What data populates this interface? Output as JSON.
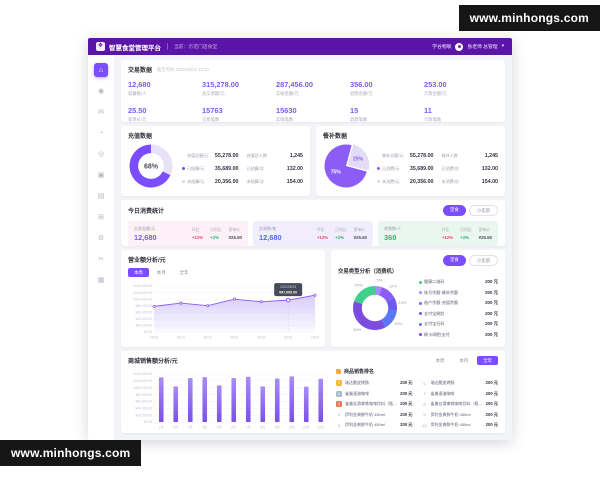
{
  "watermark": {
    "text": "www.minhongs.com"
  },
  "colors": {
    "primary": "#7c4dff",
    "header_bg": "#5a14a6",
    "red": "#ef4b6e",
    "green": "#2fb371",
    "blue": "#4f6bf5"
  },
  "header": {
    "app_title": "智慧食堂管理平台",
    "breadcrumb": "当前：示范门店食堂",
    "org_link": "学谷物联",
    "user_name": "张老师 总管理",
    "caret": "▾"
  },
  "sidebar": {
    "items": [
      {
        "name": "home",
        "glyph": "⌂"
      },
      {
        "name": "user",
        "glyph": "◉"
      },
      {
        "name": "message",
        "glyph": "✉"
      },
      {
        "name": "clock",
        "glyph": "◔"
      },
      {
        "name": "check",
        "glyph": "◎"
      },
      {
        "name": "image",
        "glyph": "▣"
      },
      {
        "name": "calendar",
        "glyph": "▤"
      },
      {
        "name": "device",
        "glyph": "⊞"
      },
      {
        "name": "settings",
        "glyph": "⚙"
      },
      {
        "name": "tools",
        "glyph": "✂"
      },
      {
        "name": "storage",
        "glyph": "▦"
      }
    ]
  },
  "transaction": {
    "title": "交易数据",
    "subtitle": "截至时间 2021/06/20 13:10",
    "stats": [
      {
        "value": "12,680",
        "label": "就餐数/人"
      },
      {
        "value": "315,278.00",
        "label": "总交易额/元"
      },
      {
        "value": "287,456.00",
        "label": "实收金额/元"
      },
      {
        "value": "356.00",
        "label": "退款金额/元"
      },
      {
        "value": "253.00",
        "label": "欠款金额/元"
      },
      {
        "value": "25.50",
        "label": "客单价/元"
      },
      {
        "value": "15763",
        "label": "交易笔数"
      },
      {
        "value": "15630",
        "label": "实收笔数"
      },
      {
        "value": "15",
        "label": "退款笔数"
      },
      {
        "value": "11",
        "label": "欠款笔数"
      }
    ]
  },
  "recharge": {
    "title": "充值数据",
    "rows": [
      {
        "dot": "",
        "label": "充值总额/元",
        "value": "55,278.00",
        "label2": "充值总人数",
        "value2": "1,245"
      },
      {
        "dot": "#7c4dff",
        "label": "已结算/元",
        "value": "35,689.00",
        "label2": "已结算/次",
        "value2": "132.00"
      },
      {
        "dot": "#ddd5f2",
        "label": "未结算/元",
        "value": "20,356.00",
        "label2": "未结算/次",
        "value2": "154.00"
      }
    ]
  },
  "subsidy": {
    "title": "餐补数据",
    "rows": [
      {
        "dot": "",
        "label": "餐补总额/元",
        "value": "55,278.00",
        "label2": "餐补人数",
        "value2": "1,245"
      },
      {
        "dot": "#8b5cf6",
        "label": "已消费/元",
        "value": "35,689.00",
        "label2": "已消费/次",
        "value2": "132.00"
      },
      {
        "dot": "#ddd5f2",
        "label": "未消费/元",
        "value": "20,356.00",
        "label2": "未消费/次",
        "value2": "154.00"
      }
    ]
  },
  "today": {
    "title": "今日消费统计",
    "btn_dine": "堂食",
    "btn_shop": "小卖部",
    "cards": [
      {
        "label": "交易金额/元",
        "value": "12,680",
        "bg": "#fdf0f6",
        "value_color": "#7b5cf0",
        "m1_label": "环比",
        "m1": "+12%",
        "m2_label": "日同比",
        "m2": "+2%",
        "m3_label": "客单价",
        "m3": "¥25.50"
      },
      {
        "label": "交易数/笔",
        "value": "12,680",
        "bg": "#f1edfd",
        "value_color": "#4f6bf5",
        "m1_label": "环比",
        "m1": "+12%",
        "m2_label": "日同比",
        "m2": "+2%",
        "m3_label": "客单价",
        "m3": "¥25.50"
      },
      {
        "label": "就餐数/人",
        "value": "360",
        "bg": "#eaf7f0",
        "value_color": "#2fb371",
        "m1_label": "环比",
        "m1": "+12%",
        "m2_label": "日同比",
        "m2": "+2%",
        "m3_label": "客单价",
        "m3": "¥25.50"
      }
    ]
  },
  "revenue": {
    "title": "营业额分析/元",
    "tabs": [
      "本周",
      "本月",
      "全年"
    ]
  },
  "type_analysis": {
    "title": "交易类型分析（消费机）",
    "btn_dine": "堂食",
    "btn_shop": "小卖部",
    "legend": [
      {
        "color": "#3fd08d",
        "name": "健康二维码",
        "value": "200 元"
      },
      {
        "color": "#a78bfa",
        "name": "账号余额-餐补余额",
        "value": "200 元"
      },
      {
        "color": "#8b5cf6",
        "name": "账户余额-充值余额",
        "value": "200 元"
      },
      {
        "color": "#6e5bf0",
        "name": "支付宝刷脸",
        "value": "200 元"
      },
      {
        "color": "#5a77f5",
        "name": "支付宝扫码",
        "value": "200 元"
      },
      {
        "color": "#7c4be0",
        "name": "刷卡/刷脸支付",
        "value": "200 元"
      }
    ]
  },
  "mall": {
    "title": "商城销售额分析/元",
    "tabs": [
      "本周",
      "本月",
      "全年"
    ]
  },
  "ranking": {
    "title": "商品销售排名",
    "rows_left": [
      {
        "rank": "1",
        "badge": "#f6b73c",
        "name": "瑞达脆皮烤肠",
        "value": "200 元"
      },
      {
        "rank": "2",
        "badge": "#a8bccb",
        "name": "雀巢速溶咖啡",
        "value": "200 元"
      },
      {
        "rank": "3",
        "badge": "#e8795a",
        "name": "雀巢丝滑拿铁咖啡饮料（瓶装）",
        "value": "200 元"
      },
      {
        "rank": "4",
        "badge": "",
        "name": "伊利金典鲜牛奶 450ml",
        "value": "200 元"
      },
      {
        "rank": "5",
        "badge": "",
        "name": "伊利金典鲜牛奶 450ml",
        "value": "200 元"
      }
    ],
    "rows_right": [
      {
        "rank": "6",
        "name": "瑞达脆皮烤肠",
        "value": "200 元"
      },
      {
        "rank": "7",
        "name": "雀巢速溶咖啡",
        "value": "200 元"
      },
      {
        "rank": "8",
        "name": "雀巢丝滑拿铁咖啡饮料（瓶装）",
        "value": "200 元"
      },
      {
        "rank": "9",
        "name": "伊利金典鲜牛奶 450ml",
        "value": "200 元"
      },
      {
        "rank": "10",
        "name": "伊利金典鲜牛奶 450ml",
        "value": "200 元"
      }
    ]
  },
  "chart_data": [
    {
      "id": "recharge-donut",
      "type": "pie",
      "donut": true,
      "start": -90,
      "labels": [
        "未结算",
        "已结算"
      ],
      "values": [
        32,
        68
      ],
      "colors": [
        "#e7e2f7",
        "#7c4dff"
      ],
      "center_label": "68%"
    },
    {
      "id": "subsidy-pie",
      "type": "pie",
      "start": -75,
      "explode": 0,
      "labels": [
        "未消费",
        "已消费"
      ],
      "values": [
        25,
        75
      ],
      "colors": [
        "#e3dcf5",
        "#8b5cf6"
      ],
      "inner_labels": true,
      "inner_label_colors": [
        "#8b5cf6",
        "#ffffff"
      ]
    },
    {
      "id": "revenue-area",
      "type": "area",
      "title": "营业额分析/元",
      "x": [
        "06/18",
        "06/19",
        "06/20",
        "06/21",
        "06/22",
        "06/23",
        "06/24"
      ],
      "values": [
        78000,
        88000,
        80000,
        100000,
        92000,
        97000,
        112000
      ],
      "ylim": [
        0,
        140000
      ],
      "yticks": [
        "¥140,000.00",
        "¥120,000.00",
        "¥100,000.00",
        "¥80,000.00",
        "¥60,000.00",
        "¥40,000.00",
        "¥20,000.00",
        "¥0.00"
      ],
      "tooltip": {
        "index": 5,
        "title": "2021/06/23",
        "value": "¥97,000.00"
      },
      "line_color": "#8b5cf6",
      "legend_position": "none",
      "grid": true
    },
    {
      "id": "type-donut",
      "type": "pie",
      "donut": true,
      "start": -90,
      "outside_labels": true,
      "labels": [
        "账号余额-餐补余额",
        "账户余额-充值余额",
        "支付宝刷脸",
        "支付宝扫码",
        "刷卡/刷脸支付",
        "健康二维码"
      ],
      "values": [
        5,
        12,
        10,
        15,
        38,
        20
      ],
      "colors": [
        "#a78bfa",
        "#8b5cf6",
        "#6e5bf0",
        "#5a77f5",
        "#7c4be0",
        "#3fd08d"
      ],
      "amounts_yuan": [
        200,
        200,
        200,
        200,
        200,
        200
      ]
    },
    {
      "id": "mall-bars",
      "type": "bar",
      "title": "商城销售额分析/元",
      "categories": [
        "1月",
        "2月",
        "3月",
        "4月",
        "5月",
        "6月",
        "7月",
        "8月",
        "9月",
        "10月",
        "11月",
        "12月"
      ],
      "values": [
        130000,
        104000,
        128000,
        131000,
        107000,
        128000,
        132000,
        104000,
        127000,
        133000,
        103000,
        126000
      ],
      "ylim": [
        0,
        140000
      ],
      "yticks": [
        "¥140,000.00",
        "¥120,000.00",
        "¥100,000.00",
        "¥80,000.00",
        "¥60,000.00",
        "¥40,000.00",
        "¥20,000.00",
        "¥0.00"
      ],
      "bar_color": "#8b6cf2",
      "grid": true
    }
  ]
}
